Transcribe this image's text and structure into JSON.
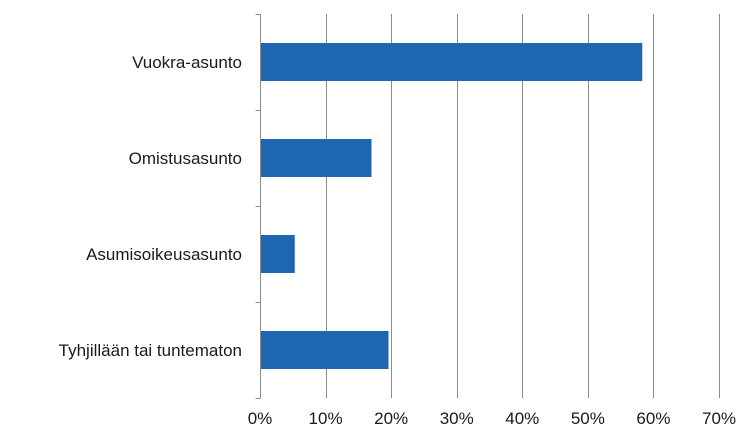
{
  "chart_data": {
    "type": "bar",
    "orientation": "horizontal",
    "title": "",
    "xlabel": "",
    "ylabel": "",
    "categories": [
      "Vuokra-asunto",
      "Omistusasunto",
      "Asumisoikeusasunto",
      "Tyhjillään tai tuntematon"
    ],
    "values": [
      58.3,
      17.0,
      5.3,
      19.6
    ],
    "value_unit": "%",
    "xlim": [
      0,
      70
    ],
    "xticks": [
      0,
      10,
      20,
      30,
      40,
      50,
      60,
      70
    ],
    "xtick_labels": [
      "0%",
      "10%",
      "20%",
      "30%",
      "40%",
      "50%",
      "60%",
      "70%"
    ],
    "grid": "vertical",
    "legend": "none",
    "bar_color": "#1f66b0",
    "grid_color": "#8c8c8c",
    "axis_color": "#8c8c8c"
  }
}
